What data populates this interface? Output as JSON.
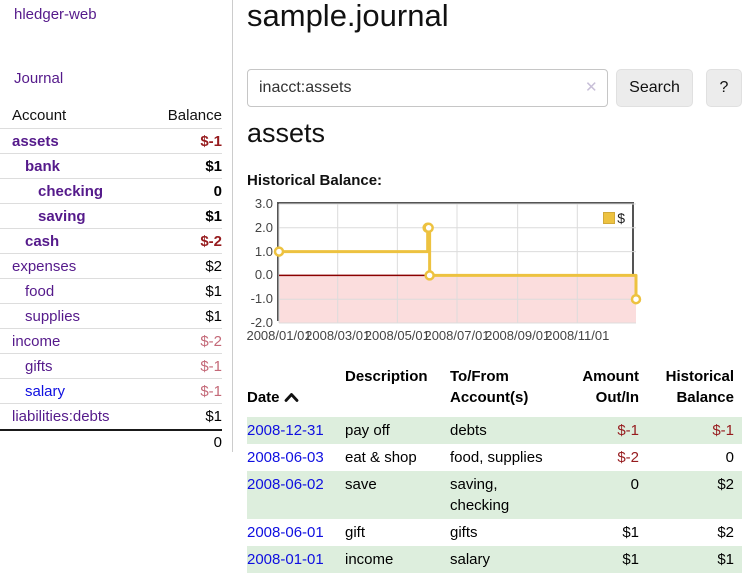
{
  "colors": {
    "purple": "#551a8b",
    "blue": "#0f0fe0",
    "neg_strong": "#961b1e",
    "neg_faded": "#c46978",
    "row_green": "#ddeedd",
    "gold": "#edc240",
    "pink": "#fbdddd",
    "zero_line": "#8b0000",
    "plot_border": "#545454",
    "grid": "#dcdcdc",
    "divider": "#cccccc",
    "rule": "#dddddd",
    "heavy_rule": "#1a1a1a",
    "button_bg": "#ececec",
    "tick_text": "#444444"
  },
  "app": {
    "title": "hledger-web",
    "nav_journal": "Journal"
  },
  "sidebar": {
    "col_account": "Account",
    "col_balance": "Balance",
    "accounts": [
      {
        "name": "assets",
        "balance": "$-1",
        "indent": 1,
        "bold": true,
        "neg": "strong",
        "blue": false
      },
      {
        "name": "bank",
        "balance": "$1",
        "indent": 2,
        "bold": true,
        "neg": null,
        "blue": false
      },
      {
        "name": "checking",
        "balance": "0",
        "indent": 3,
        "bold": true,
        "neg": null,
        "blue": false
      },
      {
        "name": "saving",
        "balance": "$1",
        "indent": 3,
        "bold": true,
        "neg": null,
        "blue": false
      },
      {
        "name": "cash",
        "balance": "$-2",
        "indent": 2,
        "bold": true,
        "neg": "strong",
        "blue": false
      },
      {
        "name": "expenses",
        "balance": "$2",
        "indent": 1,
        "bold": false,
        "neg": null,
        "blue": false
      },
      {
        "name": "food",
        "balance": "$1",
        "indent": 2,
        "bold": false,
        "neg": null,
        "blue": false
      },
      {
        "name": "supplies",
        "balance": "$1",
        "indent": 2,
        "bold": false,
        "neg": null,
        "blue": false
      },
      {
        "name": "income",
        "balance": "$-2",
        "indent": 1,
        "bold": false,
        "neg": "faded",
        "blue": false
      },
      {
        "name": "gifts",
        "balance": "$-1",
        "indent": 2,
        "bold": false,
        "neg": "faded",
        "blue": false
      },
      {
        "name": "salary",
        "balance": "$-1",
        "indent": 2,
        "bold": false,
        "neg": "faded",
        "blue": true
      },
      {
        "name": "liabilities:debts",
        "balance": "$1",
        "indent": 1,
        "bold": false,
        "neg": null,
        "blue": false
      }
    ],
    "total": "0"
  },
  "main": {
    "title": "sample.journal",
    "search": {
      "value": "inacct:assets",
      "clear_icon": "✕",
      "button_label": "Search",
      "help_label": "?"
    },
    "heading": "assets",
    "chart_label": "Historical Balance:"
  },
  "chart_data": {
    "type": "line",
    "step": true,
    "title": "Historical Balance",
    "xlabel": "",
    "ylabel": "",
    "xlim": [
      "2008-01-01",
      "2008-12-31"
    ],
    "ylim": [
      -2,
      3
    ],
    "x_ticks": [
      "2008/01/01",
      "2008/03/01",
      "2008/05/01",
      "2008/07/01",
      "2008/09/01",
      "2008/11/01"
    ],
    "y_ticks": [
      3,
      2,
      1,
      0,
      -1,
      -2
    ],
    "grid": true,
    "legend_position": "top-right",
    "negative_region_fill": "#fbdddd",
    "zero_line_color": "#8b0000",
    "grid_color": "#dcdcdc",
    "series": [
      {
        "name": "$",
        "color": "#edc240",
        "points": [
          [
            "2008-01-01",
            1
          ],
          [
            "2008-06-01",
            2
          ],
          [
            "2008-06-02",
            2
          ],
          [
            "2008-06-03",
            0
          ],
          [
            "2008-12-31",
            -1
          ]
        ]
      }
    ]
  },
  "register": {
    "headers": [
      {
        "label": "Date"
      },
      {
        "label": "Description"
      },
      {
        "label": "To/From\nAccount(s)"
      },
      {
        "label": "Amount\nOut/In"
      },
      {
        "label": "Historical\nBalance"
      }
    ],
    "rows": [
      {
        "date": "2008-12-31",
        "description": "pay off",
        "accounts": "debts",
        "amount": "$-1",
        "amount_neg": true,
        "balance": "$-1",
        "balance_neg": true
      },
      {
        "date": "2008-06-03",
        "description": "eat & shop",
        "accounts": "food, supplies",
        "amount": "$-2",
        "amount_neg": true,
        "balance": "0",
        "balance_neg": false
      },
      {
        "date": "2008-06-02",
        "description": "save",
        "accounts": "saving,\nchecking",
        "amount": "0",
        "amount_neg": false,
        "balance": "$2",
        "balance_neg": false
      },
      {
        "date": "2008-06-01",
        "description": "gift",
        "accounts": "gifts",
        "amount": "$1",
        "amount_neg": false,
        "balance": "$2",
        "balance_neg": false
      },
      {
        "date": "2008-01-01",
        "description": "income",
        "accounts": "salary",
        "amount": "$1",
        "amount_neg": false,
        "balance": "$1",
        "balance_neg": false
      }
    ]
  }
}
